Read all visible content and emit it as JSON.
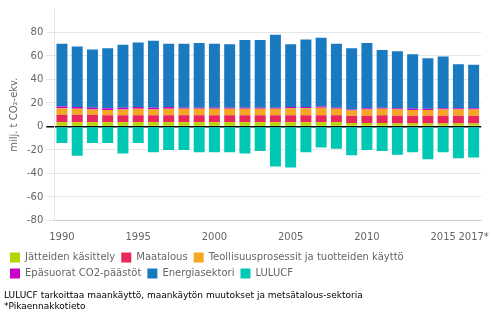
{
  "chart_data": {
    "type": "bar",
    "stacked": true,
    "y_label": "milj. t CO₂-ekv.",
    "categories": [
      "1990",
      null,
      null,
      null,
      null,
      "1995",
      null,
      null,
      null,
      null,
      "2000",
      null,
      null,
      null,
      null,
      "2005",
      null,
      null,
      null,
      null,
      "2010",
      null,
      null,
      null,
      null,
      "2015",
      null,
      "2017*"
    ],
    "series": [
      {
        "name": "Jätteiden käsittely",
        "color": "#b8d400",
        "values": [
          3.5,
          3.5,
          3.5,
          3.5,
          3.5,
          3.5,
          3.5,
          3.5,
          3.5,
          3.5,
          3.5,
          3.5,
          3.5,
          3.5,
          3.5,
          3.5,
          3.5,
          3.5,
          3.5,
          3.0,
          3.0,
          3.0,
          2.5,
          2.5,
          2.5,
          2.5,
          2.5,
          2.5
        ]
      },
      {
        "name": "Maatalous",
        "color": "#e8275a",
        "values": [
          6.5,
          6.5,
          6.5,
          6.0,
          6.0,
          6.0,
          6.0,
          6.0,
          6.0,
          6.0,
          6.0,
          6.0,
          6.0,
          6.0,
          6.0,
          6.0,
          6.0,
          6.0,
          6.0,
          6.0,
          6.0,
          6.5,
          6.5,
          6.5,
          6.5,
          6.5,
          6.5,
          6.5
        ]
      },
      {
        "name": "Teollisuusprosessit ja tuotteiden käyttö",
        "color": "#f5a623",
        "values": [
          5.5,
          5.0,
          4.5,
          4.5,
          5.0,
          5.5,
          5.0,
          5.5,
          5.5,
          5.5,
          5.5,
          5.5,
          5.5,
          5.5,
          5.5,
          6.0,
          6.0,
          6.5,
          5.5,
          4.5,
          5.5,
          5.5,
          5.5,
          5.0,
          5.0,
          5.5,
          5.5,
          5.5
        ]
      },
      {
        "name": "Epäsuorat CO2-päästöt",
        "color": "#c800c8",
        "values": [
          1.5,
          1.5,
          1.5,
          1.5,
          1.5,
          1.5,
          1.5,
          1.5,
          1.0,
          1.0,
          1.0,
          1.0,
          1.0,
          1.0,
          1.0,
          1.0,
          1.0,
          1.0,
          1.0,
          1.0,
          1.0,
          1.0,
          1.0,
          1.0,
          1.0,
          1.0,
          1.0,
          1.0
        ]
      },
      {
        "name": "Energiasektori",
        "color": "#1a7abf",
        "values": [
          53.5,
          51.5,
          49.5,
          51.0,
          53.5,
          55.0,
          57.0,
          54.0,
          54.5,
          55.0,
          54.5,
          54.0,
          57.5,
          57.5,
          62.0,
          53.5,
          57.5,
          58.5,
          54.5,
          52.0,
          55.5,
          49.0,
          48.5,
          46.5,
          43.0,
          44.0,
          37.5,
          37.0
        ]
      },
      {
        "name": "LULUCF",
        "color": "#00c8b4",
        "values": [
          -14.0,
          -25.0,
          -14.0,
          -14.0,
          -23.0,
          -14.0,
          -22.0,
          -20.0,
          -20.0,
          -22.0,
          -22.0,
          -22.0,
          -23.0,
          -21.0,
          -34.0,
          -35.0,
          -22.0,
          -18.0,
          -19.0,
          -24.5,
          -20.0,
          -21.0,
          -24.0,
          -22.0,
          -28.0,
          -22.0,
          -27.0,
          -26.5
        ]
      }
    ],
    "ylim": [
      -80,
      100
    ],
    "yticks": [
      -80,
      -60,
      -40,
      -20,
      0,
      20,
      40,
      60,
      80
    ],
    "grid": true,
    "legend": "bottom",
    "annotations": [
      "LULUCF tarkoittaa maankäyttö, maankäytön muutokset ja metsätalous-sektoria",
      "*Pikaennakkotieto"
    ]
  }
}
